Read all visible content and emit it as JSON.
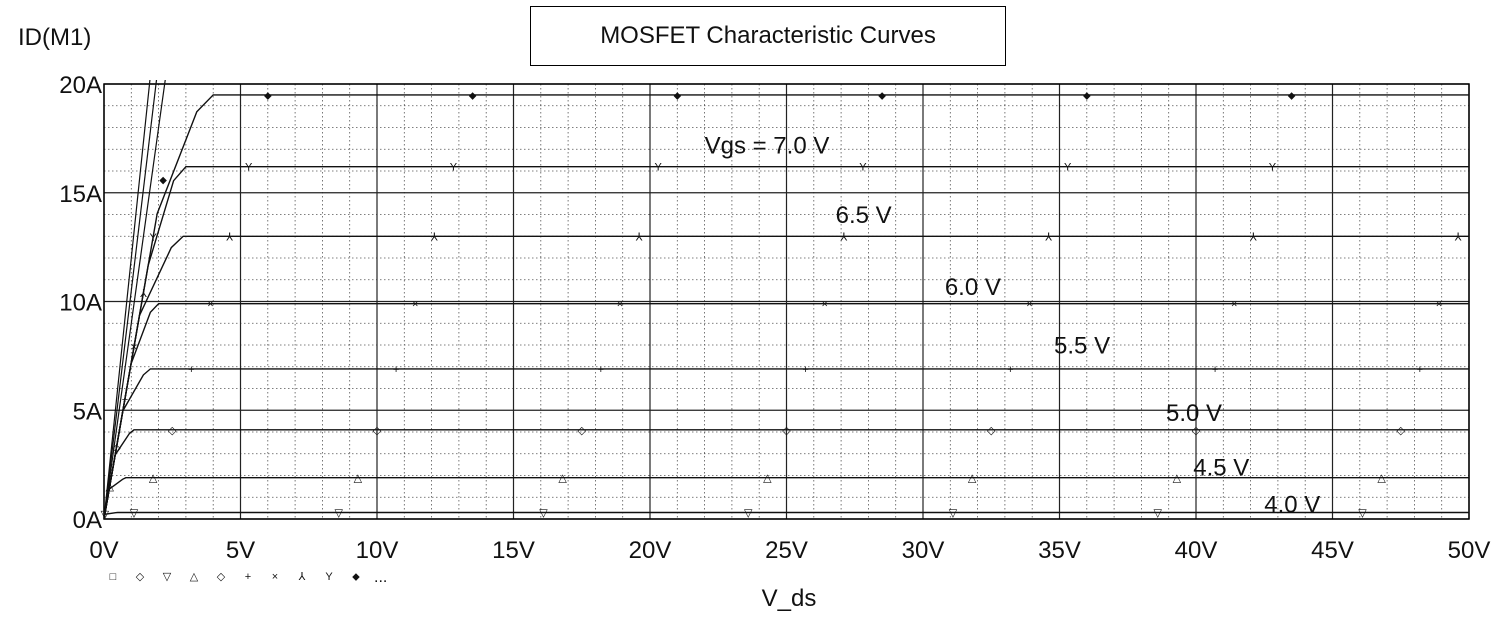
{
  "chart_data": {
    "type": "line",
    "title": "MOSFET Characteristic Curves",
    "xlabel": "V_ds",
    "ylabel": "ID(M1)",
    "xlim": [
      0,
      50
    ],
    "ylim": [
      0,
      20
    ],
    "x_ticks": [
      0,
      5,
      10,
      15,
      20,
      25,
      30,
      35,
      40,
      45,
      50
    ],
    "x_tick_labels": [
      "0V",
      "5V",
      "10V",
      "15V",
      "20V",
      "25V",
      "30V",
      "35V",
      "40V",
      "45V",
      "50V"
    ],
    "y_ticks": [
      0,
      5,
      10,
      15,
      20
    ],
    "y_tick_labels": [
      "0A",
      "5A",
      "10A",
      "15A",
      "20A"
    ],
    "grid": true,
    "series": [
      {
        "name": "4.0 V",
        "marker": "▽",
        "saturation_current": 0.3,
        "knee_vds": 0.5
      },
      {
        "name": "4.5 V",
        "marker": "△",
        "saturation_current": 1.9,
        "knee_vds": 0.8
      },
      {
        "name": "5.0 V",
        "marker": "◇",
        "saturation_current": 4.1,
        "knee_vds": 1.1
      },
      {
        "name": "5.5 V",
        "marker": "+",
        "saturation_current": 6.9,
        "knee_vds": 1.7
      },
      {
        "name": "6.0 V",
        "marker": "×",
        "saturation_current": 9.9,
        "knee_vds": 2.0
      },
      {
        "name": "6.5 V",
        "marker": "⅄",
        "saturation_current": 13.0,
        "knee_vds": 2.9
      },
      {
        "name": "Vgs = 7.0 V",
        "marker": "Y",
        "saturation_current": 16.2,
        "knee_vds": 3.0
      },
      {
        "name": "",
        "marker": "⬥",
        "saturation_current": 19.5,
        "knee_vds": 4.0
      }
    ],
    "curve_labels": [
      {
        "text": "Vgs = 7.0 V",
        "x": 22,
        "y": 16.8
      },
      {
        "text": "6.5 V",
        "x": 26.8,
        "y": 13.6
      },
      {
        "text": "6.0 V",
        "x": 30.8,
        "y": 10.3
      },
      {
        "text": "5.5 V",
        "x": 34.8,
        "y": 7.6
      },
      {
        "text": "5.0 V",
        "x": 38.9,
        "y": 4.5
      },
      {
        "text": "4.5 V",
        "x": 39.9,
        "y": 2.0
      },
      {
        "text": "4.0 V",
        "x": 42.5,
        "y": 0.3
      }
    ],
    "legend_markers": [
      "□",
      "◇",
      "▽",
      "△",
      "◇",
      "+",
      "×",
      "⅄",
      "Y",
      "⬥"
    ],
    "legend_more": "..."
  }
}
